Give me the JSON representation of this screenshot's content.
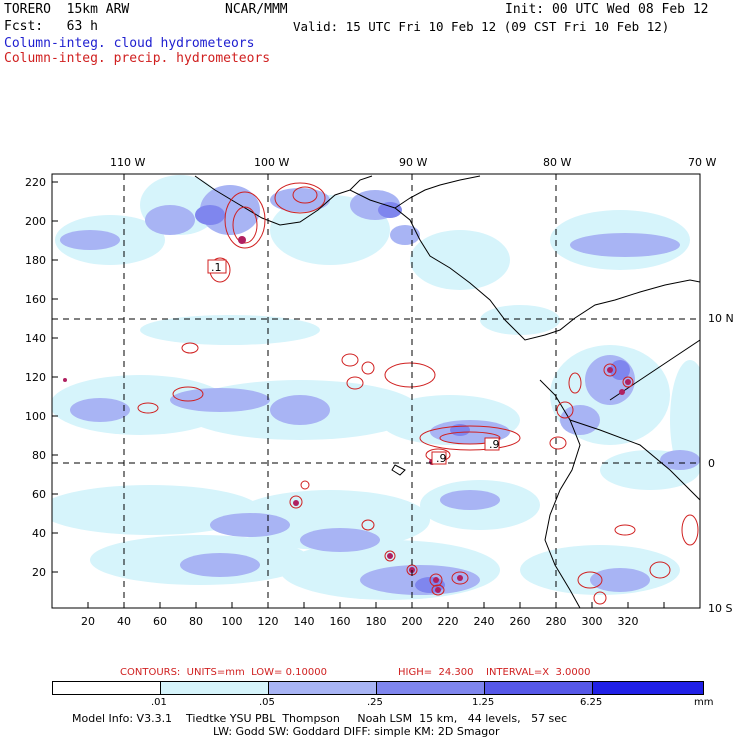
{
  "header": {
    "model_id": "TORERO  15km ARW",
    "org": "NCAR/MMM",
    "init": "Init: 00 UTC Wed 08 Feb 12",
    "fcst": "Fcst:   63 h",
    "valid": "Valid: 15 UTC Fri 10 Feb 12 (09 CST Fri 10 Feb 12)",
    "field_cloud": "Column-integ. cloud hydrometeors",
    "field_precip": "Column-integ. precip. hydrometeors"
  },
  "map": {
    "lon_labels": [
      "110 W",
      "100 W",
      "90 W",
      "80 W",
      "70 W"
    ],
    "lat_labels": [
      "10 N",
      "0",
      "10 S"
    ],
    "y_ticks": [
      "220",
      "200",
      "180",
      "160",
      "140",
      "120",
      "100",
      "80",
      "60",
      "40",
      "20"
    ],
    "x_ticks": [
      "20",
      "40",
      "60",
      "80",
      "100",
      "120",
      "140",
      "160",
      "180",
      "200",
      "220",
      "240",
      "260",
      "280",
      "300",
      "320"
    ],
    "contour_labels": [
      ".1",
      ".9",
      ".9"
    ]
  },
  "contour_info": {
    "contours": "CONTOURS:  UNITS=mm  LOW= 0.10000",
    "high": "HIGH=  24.300",
    "interval": "INTERVAL=X  3.0000"
  },
  "legend": {
    "ticks": [
      ".01",
      ".05",
      ".25",
      "1.25",
      "6.25"
    ],
    "unit": "mm",
    "colors": [
      "#ffffff",
      "#d6f4fb",
      "#a8b4f4",
      "#7f86ee",
      "#5658e8",
      "#2020e6"
    ]
  },
  "footer": {
    "line1": "Model Info: V3.3.1    Tiedtke YSU PBL  Thompson     Noah LSM  15 km,   44 levels,   57 sec",
    "line2": "LW: Godd SW: Goddard DIFF: simple KM: 2D Smagor"
  }
}
